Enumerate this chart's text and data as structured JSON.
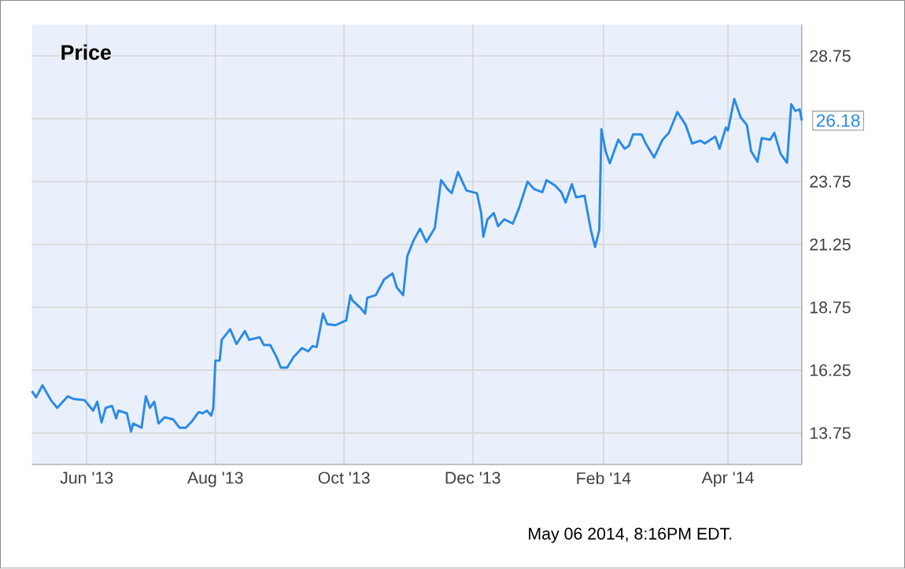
{
  "chart_data": {
    "type": "line",
    "title": "Price",
    "x": [
      "2013-05-06",
      "2013-05-08",
      "2013-05-11",
      "2013-05-15",
      "2013-05-18",
      "2013-05-23",
      "2013-05-26",
      "2013-05-31",
      "2013-06-04",
      "2013-06-06",
      "2013-06-08",
      "2013-06-10",
      "2013-06-13",
      "2013-06-15",
      "2013-06-16",
      "2013-06-20",
      "2013-06-22",
      "2013-06-23",
      "2013-06-27",
      "2013-06-29",
      "2013-07-01",
      "2013-07-03",
      "2013-07-05",
      "2013-07-08",
      "2013-07-12",
      "2013-07-15",
      "2013-07-18",
      "2013-07-21",
      "2013-07-24",
      "2013-07-26",
      "2013-07-28",
      "2013-07-30",
      "2013-07-31",
      "2013-08-01",
      "2013-08-03",
      "2013-08-04",
      "2013-08-08",
      "2013-08-11",
      "2013-08-15",
      "2013-08-17",
      "2013-08-22",
      "2013-08-24",
      "2013-08-27",
      "2013-08-30",
      "2013-09-01",
      "2013-09-04",
      "2013-09-07",
      "2013-09-11",
      "2013-09-14",
      "2013-09-16",
      "2013-09-18",
      "2013-09-21",
      "2013-09-23",
      "2013-09-27",
      "2013-10-02",
      "2013-10-04",
      "2013-10-05",
      "2013-10-09",
      "2013-10-11",
      "2013-10-12",
      "2013-10-16",
      "2013-10-20",
      "2013-10-24",
      "2013-10-26",
      "2013-10-29",
      "2013-10-31",
      "2013-11-03",
      "2013-11-06",
      "2013-11-09",
      "2013-11-13",
      "2013-11-16",
      "2013-11-19",
      "2013-11-21",
      "2013-11-24",
      "2013-11-28",
      "2013-12-03",
      "2013-12-05",
      "2013-12-06",
      "2013-12-08",
      "2013-12-11",
      "2013-12-13",
      "2013-12-16",
      "2013-12-20",
      "2013-12-23",
      "2013-12-27",
      "2013-12-30",
      "2014-01-03",
      "2014-01-05",
      "2014-01-09",
      "2014-01-12",
      "2014-01-14",
      "2014-01-17",
      "2014-01-19",
      "2014-01-23",
      "2014-01-26",
      "2014-01-28",
      "2014-01-30",
      "2014-01-31",
      "2014-02-02",
      "2014-02-04",
      "2014-02-08",
      "2014-02-11",
      "2014-02-13",
      "2014-02-15",
      "2014-02-19",
      "2014-02-21",
      "2014-02-25",
      "2014-02-27",
      "2014-03-01",
      "2014-03-04",
      "2014-03-08",
      "2014-03-12",
      "2014-03-15",
      "2014-03-19",
      "2014-03-21",
      "2014-03-26",
      "2014-03-28",
      "2014-03-31",
      "2014-04-01",
      "2014-04-04",
      "2014-04-07",
      "2014-04-10",
      "2014-04-12",
      "2014-04-15",
      "2014-04-17",
      "2014-04-21",
      "2014-04-23",
      "2014-04-26",
      "2014-04-29",
      "2014-05-01",
      "2014-05-03",
      "2014-05-05",
      "2014-05-06"
    ],
    "series": [
      {
        "color": "#2a8ae6",
        "values": [
          15.42,
          15.17,
          15.65,
          15.06,
          14.75,
          15.21,
          15.1,
          15.06,
          14.64,
          15.0,
          14.17,
          14.75,
          14.83,
          14.33,
          14.64,
          14.54,
          13.81,
          14.13,
          13.96,
          15.21,
          14.75,
          15.0,
          14.13,
          14.38,
          14.29,
          13.96,
          13.96,
          14.23,
          14.58,
          14.54,
          14.64,
          14.44,
          14.75,
          16.63,
          16.63,
          17.46,
          17.88,
          17.29,
          17.81,
          17.46,
          17.56,
          17.25,
          17.25,
          16.77,
          16.35,
          16.35,
          16.77,
          17.13,
          17.0,
          17.21,
          17.17,
          18.5,
          18.08,
          18.04,
          18.23,
          19.23,
          19.02,
          18.71,
          18.5,
          19.13,
          19.23,
          19.86,
          20.1,
          19.54,
          19.23,
          20.79,
          21.42,
          21.88,
          21.35,
          21.9,
          23.81,
          23.46,
          23.29,
          24.13,
          23.4,
          23.29,
          22.5,
          21.56,
          22.25,
          22.5,
          21.98,
          22.25,
          22.08,
          22.71,
          23.75,
          23.46,
          23.33,
          23.81,
          23.6,
          23.33,
          22.92,
          23.65,
          23.13,
          23.19,
          21.83,
          21.15,
          21.83,
          25.83,
          24.96,
          24.48,
          25.42,
          25.06,
          25.17,
          25.63,
          25.63,
          25.27,
          24.71,
          25.06,
          25.42,
          25.69,
          26.52,
          26.0,
          25.27,
          25.38,
          25.27,
          25.54,
          25.06,
          25.9,
          25.79,
          27.04,
          26.31,
          26.0,
          24.96,
          24.54,
          25.48,
          25.42,
          25.69,
          24.85,
          24.5,
          26.83,
          26.56,
          26.63,
          26.18
        ]
      }
    ],
    "xlim": [
      "2013-05-06",
      "2014-05-06"
    ],
    "xticks": [
      {
        "value": "2013-06-01",
        "label": "Jun '13"
      },
      {
        "value": "2013-08-01",
        "label": "Aug '13"
      },
      {
        "value": "2013-10-01",
        "label": "Oct '13"
      },
      {
        "value": "2013-12-01",
        "label": "Dec '13"
      },
      {
        "value": "2014-02-01",
        "label": "Feb '14"
      },
      {
        "value": "2014-04-01",
        "label": "Apr '14"
      }
    ],
    "ylim": [
      12.5,
      30
    ],
    "yticks": [
      {
        "value": 13.75,
        "label": "13.75"
      },
      {
        "value": 16.25,
        "label": "16.25"
      },
      {
        "value": 18.75,
        "label": "18.75"
      },
      {
        "value": 21.25,
        "label": "21.25"
      },
      {
        "value": 23.75,
        "label": "23.75"
      },
      {
        "value": 26.25,
        "label": null
      },
      {
        "value": 28.75,
        "label": "28.75"
      }
    ],
    "grid": true,
    "annotations": [
      {
        "text": "26.18",
        "x": "2014-05-06",
        "y": 26.18
      },
      "May 06 2014, 8:16PM EDT."
    ]
  }
}
